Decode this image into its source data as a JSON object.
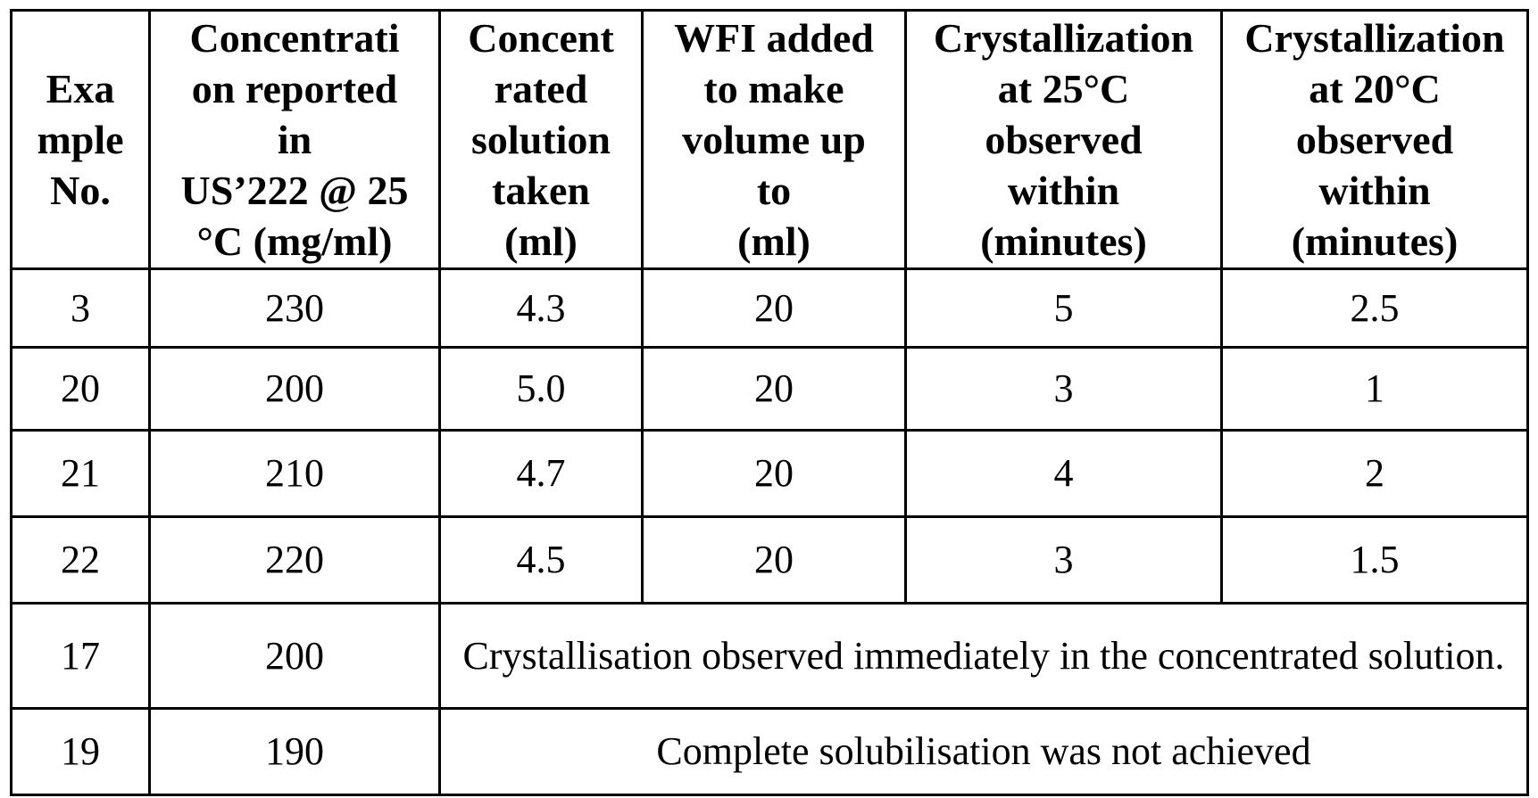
{
  "table": {
    "headers": [
      "Exa\nmple\nNo.",
      "Concentrati\non reported\nin\nUS’222 @ 25\n°C (mg/ml)",
      "Concent\nrated\nsolution\ntaken\n(ml)",
      "WFI added\nto make\nvolume up\nto\n(ml)",
      "Crystallization\nat 25°C\nobserved\nwithin\n(minutes)",
      "Crystallization\nat 20°C\nobserved\nwithin\n(minutes)"
    ],
    "rows": [
      {
        "example": "3",
        "concentration": "230",
        "taken": "4.3",
        "wfi": "20",
        "cryst25": "5",
        "cryst20": "2.5"
      },
      {
        "example": "20",
        "concentration": "200",
        "taken": "5.0",
        "wfi": "20",
        "cryst25": "3",
        "cryst20": "1"
      },
      {
        "example": "21",
        "concentration": "210",
        "taken": "4.7",
        "wfi": "20",
        "cryst25": "4",
        "cryst20": "2"
      },
      {
        "example": "22",
        "concentration": "220",
        "taken": "4.5",
        "wfi": "20",
        "cryst25": "3",
        "cryst20": "1.5"
      },
      {
        "example": "17",
        "concentration": "200",
        "note": "Crystallisation observed immediately in the concentrated solution."
      },
      {
        "example": "19",
        "concentration": "190",
        "note": "Complete solubilisation was not achieved"
      }
    ]
  }
}
